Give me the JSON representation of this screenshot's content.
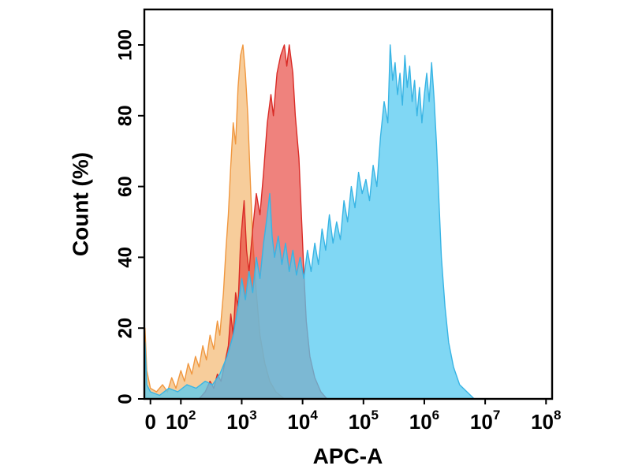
{
  "chart_data": {
    "type": "area",
    "subtype": "flow-cytometry-histogram-overlay",
    "title": "",
    "xlabel": "APC-A",
    "ylabel": "Count  (%)",
    "x_scale": "biexponential-log",
    "x_unit": "u = log10(APC-A signal)",
    "x_axis_range_u": [
      1.4,
      8.1
    ],
    "ylim": [
      0,
      100
    ],
    "grid": false,
    "legend": "none",
    "x_ticks": [
      {
        "label": "0",
        "u": 1.5
      },
      {
        "base": "10",
        "exp": "2",
        "u": 2
      },
      {
        "base": "10",
        "exp": "3",
        "u": 3
      },
      {
        "base": "10",
        "exp": "4",
        "u": 4
      },
      {
        "base": "10",
        "exp": "5",
        "u": 5
      },
      {
        "base": "10",
        "exp": "6",
        "u": 6
      },
      {
        "base": "10",
        "exp": "7",
        "u": 7
      },
      {
        "base": "10",
        "exp": "8",
        "u": 8
      }
    ],
    "y_ticks": [
      0,
      20,
      40,
      60,
      80,
      100
    ],
    "series": [
      {
        "name": "orange",
        "description": "left histogram peaking near 1e3, 100% max",
        "fill": "#F6C992",
        "stroke": "#F0973F",
        "fill_opacity": 0.92,
        "points": [
          [
            1.4,
            0
          ],
          [
            1.41,
            20
          ],
          [
            1.44,
            8
          ],
          [
            1.5,
            3
          ],
          [
            1.6,
            2
          ],
          [
            1.7,
            4
          ],
          [
            1.78,
            2
          ],
          [
            1.85,
            6
          ],
          [
            1.92,
            3
          ],
          [
            2.0,
            8
          ],
          [
            2.06,
            5
          ],
          [
            2.12,
            10
          ],
          [
            2.18,
            7
          ],
          [
            2.24,
            12
          ],
          [
            2.3,
            9
          ],
          [
            2.36,
            15
          ],
          [
            2.42,
            11
          ],
          [
            2.48,
            18
          ],
          [
            2.54,
            14
          ],
          [
            2.6,
            22
          ],
          [
            2.64,
            18
          ],
          [
            2.7,
            30
          ],
          [
            2.74,
            42
          ],
          [
            2.78,
            52
          ],
          [
            2.82,
            66
          ],
          [
            2.86,
            78
          ],
          [
            2.9,
            72
          ],
          [
            2.94,
            88
          ],
          [
            2.98,
            97
          ],
          [
            3.02,
            100
          ],
          [
            3.06,
            92
          ],
          [
            3.1,
            80
          ],
          [
            3.14,
            62
          ],
          [
            3.18,
            45
          ],
          [
            3.24,
            30
          ],
          [
            3.3,
            18
          ],
          [
            3.38,
            10
          ],
          [
            3.46,
            5
          ],
          [
            3.56,
            2
          ],
          [
            3.7,
            0
          ]
        ]
      },
      {
        "name": "red",
        "description": "middle histogram peaking between 1e3 and 1e4, 100% max",
        "fill": "#E6413A",
        "stroke": "#D92B26",
        "fill_opacity": 0.66,
        "points": [
          [
            2.3,
            0
          ],
          [
            2.4,
            2
          ],
          [
            2.48,
            5
          ],
          [
            2.54,
            3
          ],
          [
            2.6,
            7
          ],
          [
            2.66,
            5
          ],
          [
            2.72,
            10
          ],
          [
            2.78,
            15
          ],
          [
            2.82,
            24
          ],
          [
            2.86,
            18
          ],
          [
            2.9,
            30
          ],
          [
            2.94,
            26
          ],
          [
            2.98,
            44
          ],
          [
            3.04,
            56
          ],
          [
            3.08,
            42
          ],
          [
            3.12,
            36
          ],
          [
            3.18,
            48
          ],
          [
            3.24,
            58
          ],
          [
            3.3,
            52
          ],
          [
            3.36,
            64
          ],
          [
            3.42,
            78
          ],
          [
            3.48,
            86
          ],
          [
            3.52,
            80
          ],
          [
            3.58,
            92
          ],
          [
            3.64,
            97
          ],
          [
            3.7,
            100
          ],
          [
            3.74,
            94
          ],
          [
            3.78,
            100
          ],
          [
            3.84,
            92
          ],
          [
            3.88,
            80
          ],
          [
            3.94,
            68
          ],
          [
            3.98,
            52
          ],
          [
            4.02,
            36
          ],
          [
            4.06,
            22
          ],
          [
            4.12,
            12
          ],
          [
            4.2,
            6
          ],
          [
            4.3,
            2
          ],
          [
            4.4,
            0
          ]
        ]
      },
      {
        "name": "blue",
        "description": "right histogram peaking between 1e5 and 1e6, 100% max, with noisy left tail overlapping red",
        "fill": "#55C9F0",
        "stroke": "#38B4E4",
        "fill_opacity": 0.75,
        "points": [
          [
            1.4,
            0
          ],
          [
            1.41,
            16
          ],
          [
            1.44,
            4
          ],
          [
            1.5,
            2
          ],
          [
            1.65,
            1
          ],
          [
            1.8,
            3
          ],
          [
            1.95,
            2
          ],
          [
            2.1,
            4
          ],
          [
            2.25,
            3
          ],
          [
            2.4,
            5
          ],
          [
            2.52,
            4
          ],
          [
            2.64,
            7
          ],
          [
            2.76,
            12
          ],
          [
            2.86,
            18
          ],
          [
            2.94,
            26
          ],
          [
            3.0,
            34
          ],
          [
            3.06,
            28
          ],
          [
            3.12,
            36
          ],
          [
            3.18,
            30
          ],
          [
            3.24,
            40
          ],
          [
            3.3,
            34
          ],
          [
            3.36,
            44
          ],
          [
            3.42,
            52
          ],
          [
            3.46,
            58
          ],
          [
            3.5,
            46
          ],
          [
            3.54,
            40
          ],
          [
            3.6,
            46
          ],
          [
            3.66,
            38
          ],
          [
            3.72,
            44
          ],
          [
            3.78,
            36
          ],
          [
            3.84,
            42
          ],
          [
            3.9,
            35
          ],
          [
            3.96,
            40
          ],
          [
            4.02,
            34
          ],
          [
            4.08,
            42
          ],
          [
            4.14,
            36
          ],
          [
            4.2,
            44
          ],
          [
            4.26,
            38
          ],
          [
            4.32,
            48
          ],
          [
            4.38,
            42
          ],
          [
            4.44,
            52
          ],
          [
            4.5,
            44
          ],
          [
            4.56,
            50
          ],
          [
            4.62,
            45
          ],
          [
            4.68,
            56
          ],
          [
            4.74,
            50
          ],
          [
            4.8,
            60
          ],
          [
            4.86,
            54
          ],
          [
            4.92,
            64
          ],
          [
            4.98,
            58
          ],
          [
            5.04,
            62
          ],
          [
            5.1,
            56
          ],
          [
            5.16,
            66
          ],
          [
            5.22,
            60
          ],
          [
            5.28,
            74
          ],
          [
            5.34,
            84
          ],
          [
            5.4,
            78
          ],
          [
            5.44,
            100
          ],
          [
            5.48,
            90
          ],
          [
            5.52,
            95
          ],
          [
            5.56,
            86
          ],
          [
            5.6,
            92
          ],
          [
            5.64,
            83
          ],
          [
            5.68,
            97
          ],
          [
            5.72,
            88
          ],
          [
            5.76,
            94
          ],
          [
            5.8,
            84
          ],
          [
            5.84,
            90
          ],
          [
            5.88,
            80
          ],
          [
            5.92,
            88
          ],
          [
            5.96,
            78
          ],
          [
            6.0,
            86
          ],
          [
            6.04,
            92
          ],
          [
            6.08,
            84
          ],
          [
            6.12,
            95
          ],
          [
            6.16,
            85
          ],
          [
            6.2,
            72
          ],
          [
            6.24,
            56
          ],
          [
            6.28,
            40
          ],
          [
            6.34,
            26
          ],
          [
            6.4,
            16
          ],
          [
            6.48,
            9
          ],
          [
            6.58,
            4
          ],
          [
            6.7,
            2
          ],
          [
            6.82,
            0
          ]
        ]
      }
    ],
    "colors": {
      "axis": "#000000",
      "background": "#ffffff"
    }
  }
}
